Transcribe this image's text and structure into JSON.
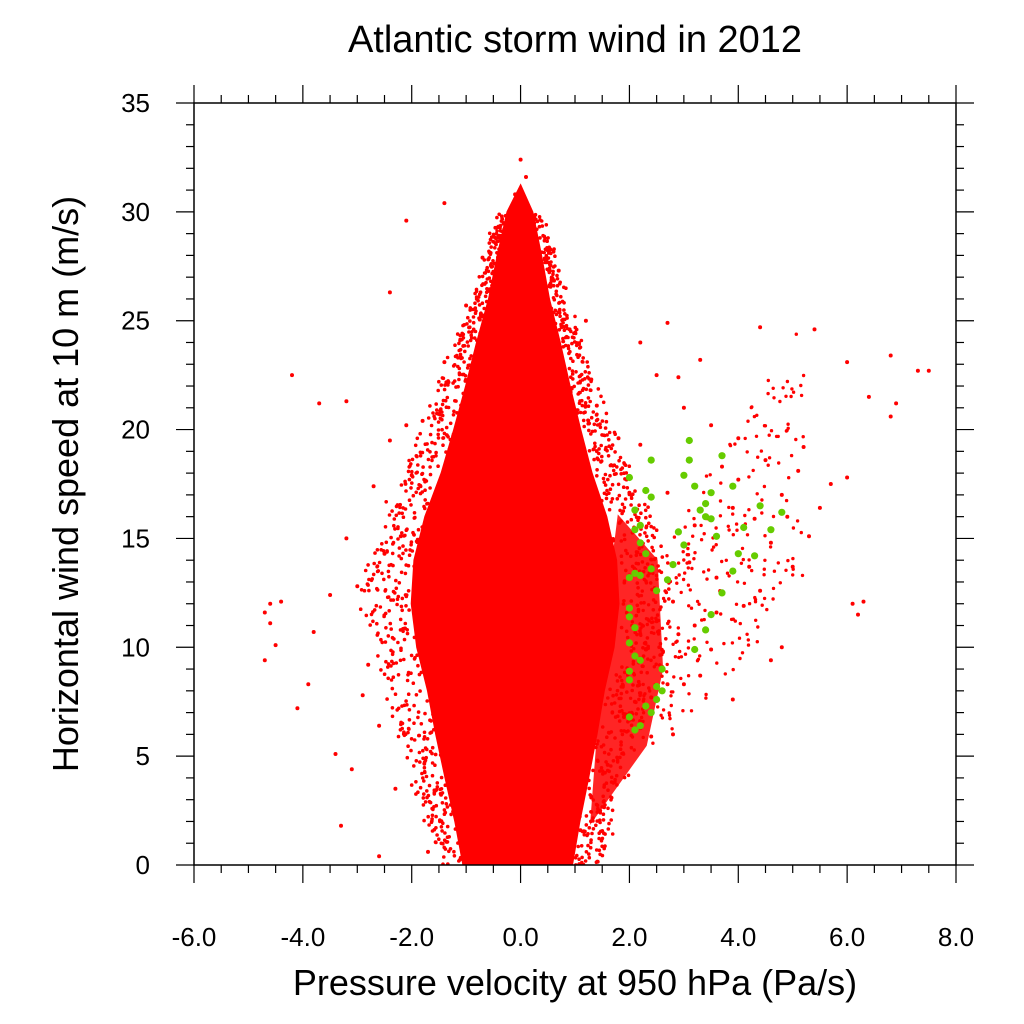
{
  "chart_data": {
    "type": "scatter",
    "title": "Atlantic storm wind in 2012",
    "xlabel": "Pressure velocity at 950 hPa (Pa/s)",
    "ylabel": "Horizontal wind speed at 10 m (m/s)",
    "xlim": [
      -6.0,
      8.0
    ],
    "ylim": [
      0,
      35
    ],
    "x_ticks": [
      -6.0,
      -4.0,
      -2.0,
      0.0,
      2.0,
      4.0,
      6.0,
      8.0
    ],
    "x_tick_labels": [
      "-6.0",
      "-4.0",
      "-2.0",
      "0.0",
      "2.0",
      "4.0",
      "6.0",
      "8.0"
    ],
    "y_ticks": [
      0,
      5,
      10,
      15,
      20,
      25,
      30,
      35
    ],
    "y_tick_labels": [
      "0",
      "5",
      "10",
      "15",
      "20",
      "25",
      "30",
      "35"
    ],
    "grid": false,
    "legend": "none",
    "series": [
      {
        "color": "#ff0000",
        "marker": "dot",
        "points": [
          [
            0.0,
            32.4
          ],
          [
            0.1,
            31.6
          ],
          [
            -0.1,
            30.8
          ],
          [
            -2.1,
            29.6
          ],
          [
            -1.4,
            30.4
          ],
          [
            -2.4,
            26.3
          ],
          [
            -4.2,
            22.5
          ],
          [
            -3.7,
            21.2
          ],
          [
            -3.2,
            21.3
          ],
          [
            -3.9,
            8.3
          ],
          [
            -3.8,
            10.7
          ],
          [
            -4.1,
            7.2
          ],
          [
            -4.7,
            11.6
          ],
          [
            -4.6,
            12.0
          ],
          [
            -4.5,
            10.1
          ],
          [
            -4.7,
            9.4
          ],
          [
            -4.6,
            11.1
          ],
          [
            -4.4,
            12.1
          ],
          [
            -3.3,
            1.8
          ],
          [
            -2.6,
            0.4
          ],
          [
            -1.5,
            16.6
          ],
          [
            -2.2,
            15.1
          ],
          [
            1.2,
            25.0
          ],
          [
            1.4,
            21.1
          ],
          [
            2.2,
            24.0
          ],
          [
            2.5,
            22.5
          ],
          [
            2.7,
            24.9
          ],
          [
            2.9,
            22.4
          ],
          [
            3.3,
            23.2
          ],
          [
            4.4,
            24.7
          ],
          [
            5.4,
            24.6
          ],
          [
            6.0,
            23.1
          ],
          [
            6.8,
            23.4
          ],
          [
            7.3,
            22.7
          ],
          [
            7.5,
            22.7
          ],
          [
            6.4,
            21.5
          ],
          [
            6.8,
            20.6
          ],
          [
            6.9,
            21.2
          ],
          [
            6.1,
            12.0
          ],
          [
            6.3,
            12.1
          ],
          [
            6.2,
            11.5
          ],
          [
            4.6,
            9.4
          ],
          [
            4.8,
            10.0
          ],
          [
            2.6,
            9.1
          ],
          [
            3.9,
            7.6
          ],
          [
            2.4,
            5.9
          ],
          [
            2.8,
            6.0
          ],
          [
            5.0,
            13.7
          ],
          [
            5.3,
            15.1
          ],
          [
            5.7,
            17.5
          ],
          [
            6.0,
            17.8
          ],
          [
            5.2,
            19.2
          ],
          [
            4.8,
            17.0
          ],
          [
            4.0,
            19.6
          ],
          [
            3.5,
            20.2
          ],
          [
            3.0,
            21.0
          ],
          [
            2.2,
            19.3
          ],
          [
            2.7,
            17.1
          ],
          [
            3.2,
            15.6
          ],
          [
            3.9,
            16.4
          ],
          [
            4.3,
            15.9
          ],
          [
            4.6,
            14.8
          ],
          [
            4.2,
            13.7
          ],
          [
            3.6,
            13.2
          ],
          [
            3.1,
            13.9
          ],
          [
            2.8,
            12.1
          ],
          [
            3.2,
            11.0
          ],
          [
            3.5,
            9.9
          ],
          [
            2.9,
            10.6
          ],
          [
            2.5,
            11.2
          ],
          [
            2.3,
            9.9
          ],
          [
            2.7,
            8.3
          ],
          [
            3.3,
            8.7
          ],
          [
            2.1,
            7.5
          ],
          [
            1.9,
            6.8
          ],
          [
            1.6,
            4.6
          ],
          [
            1.3,
            3.1
          ],
          [
            1.1,
            1.6
          ],
          [
            0.7,
            0.3
          ],
          [
            -0.8,
            0.2
          ],
          [
            -1.7,
            0.6
          ],
          [
            -2.3,
            3.5
          ],
          [
            -2.6,
            6.4
          ],
          [
            -2.8,
            9.2
          ],
          [
            -3.0,
            12.8
          ],
          [
            -2.5,
            14.3
          ],
          [
            -2.0,
            17.9
          ],
          [
            -1.8,
            20.4
          ],
          [
            -1.4,
            23.1
          ],
          [
            -1.0,
            25.7
          ],
          [
            -0.7,
            27.9
          ],
          [
            0.7,
            27.3
          ],
          [
            0.9,
            24.6
          ],
          [
            1.3,
            22.3
          ],
          [
            1.8,
            19.6
          ],
          [
            2.0,
            17.1
          ],
          [
            1.7,
            14.9
          ],
          [
            2.0,
            13.3
          ],
          [
            1.5,
            11.6
          ],
          [
            3.7,
            18.3
          ],
          [
            4.0,
            17.7
          ],
          [
            4.5,
            18.6
          ],
          [
            5.1,
            18.1
          ],
          [
            5.5,
            16.4
          ],
          [
            4.9,
            16.0
          ],
          [
            4.4,
            12.6
          ],
          [
            4.1,
            11.9
          ],
          [
            3.6,
            11.6
          ],
          [
            3.0,
            8.3
          ],
          [
            2.4,
            7.7
          ],
          [
            -3.4,
            5.1
          ],
          [
            -3.1,
            4.4
          ],
          [
            -2.9,
            7.8
          ],
          [
            -3.5,
            12.4
          ],
          [
            -3.2,
            15.0
          ],
          [
            -2.7,
            17.4
          ],
          [
            -2.4,
            19.5
          ],
          [
            -2.1,
            20.2
          ]
        ]
      },
      {
        "color": "#66cc00",
        "marker": "dot",
        "points": [
          [
            2.0,
            17.8
          ],
          [
            2.1,
            16.3
          ],
          [
            2.2,
            15.6
          ],
          [
            2.3,
            17.2
          ],
          [
            2.4,
            18.6
          ],
          [
            2.4,
            16.9
          ],
          [
            2.1,
            15.4
          ],
          [
            2.2,
            14.8
          ],
          [
            2.3,
            14.3
          ],
          [
            2.1,
            13.4
          ],
          [
            2.0,
            13.2
          ],
          [
            2.2,
            13.3
          ],
          [
            2.4,
            13.6
          ],
          [
            2.5,
            12.6
          ],
          [
            2.0,
            11.8
          ],
          [
            2.0,
            11.4
          ],
          [
            2.1,
            10.9
          ],
          [
            2.0,
            10.2
          ],
          [
            2.1,
            9.6
          ],
          [
            2.2,
            9.4
          ],
          [
            2.0,
            8.9
          ],
          [
            2.0,
            8.5
          ],
          [
            2.3,
            7.3
          ],
          [
            2.0,
            6.8
          ],
          [
            2.2,
            6.4
          ],
          [
            2.1,
            6.2
          ],
          [
            2.4,
            7.0
          ],
          [
            2.5,
            7.6
          ],
          [
            2.6,
            8.0
          ],
          [
            2.5,
            8.2
          ],
          [
            2.6,
            9.0
          ],
          [
            2.7,
            13.1
          ],
          [
            2.8,
            13.8
          ],
          [
            2.9,
            15.3
          ],
          [
            3.0,
            14.7
          ],
          [
            3.0,
            17.9
          ],
          [
            3.1,
            18.6
          ],
          [
            3.1,
            19.5
          ],
          [
            3.2,
            17.4
          ],
          [
            3.3,
            16.3
          ],
          [
            3.4,
            16.6
          ],
          [
            3.4,
            16.0
          ],
          [
            3.5,
            17.1
          ],
          [
            3.5,
            15.9
          ],
          [
            3.6,
            15.1
          ],
          [
            3.7,
            18.8
          ],
          [
            3.7,
            12.5
          ],
          [
            3.5,
            11.5
          ],
          [
            3.4,
            10.8
          ],
          [
            3.2,
            9.9
          ],
          [
            3.9,
            13.5
          ],
          [
            4.0,
            14.3
          ],
          [
            4.1,
            15.5
          ],
          [
            4.3,
            14.2
          ],
          [
            4.4,
            16.5
          ],
          [
            4.6,
            15.4
          ],
          [
            4.8,
            16.2
          ],
          [
            3.9,
            17.4
          ]
        ]
      }
    ]
  }
}
